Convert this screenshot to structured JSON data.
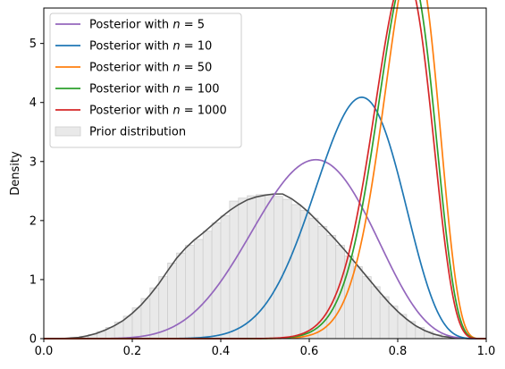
{
  "chart_data": {
    "type": "line",
    "title": "",
    "xlabel": "",
    "ylabel": "Density",
    "xlim": [
      0.0,
      1.0
    ],
    "ylim": [
      0,
      5.6
    ],
    "xticks": [
      "0.0",
      "0.2",
      "0.4",
      "0.6",
      "0.8",
      "1.0"
    ],
    "yticks": [
      "0",
      "1",
      "2",
      "3",
      "4",
      "5"
    ],
    "grid": false,
    "legend_position": "top-left",
    "series": [
      {
        "name": "Posterior with n = 5",
        "legend_prefix": "Posterior with ",
        "legend_var": "n",
        "legend_eq": " = 5",
        "color": "#9467bd",
        "a": 8.5,
        "b": 5.7
      },
      {
        "name": "Posterior with n = 10",
        "legend_prefix": "Posterior with ",
        "legend_var": "n",
        "legend_eq": " = 10",
        "color": "#1f77b4",
        "a": 15.3,
        "b": 6.6
      },
      {
        "name": "Posterior with n = 50",
        "legend_prefix": "Posterior with ",
        "legend_var": "n",
        "legend_eq": " = 50",
        "color": "#ff7f0e",
        "a": 31.5,
        "b": 7.0
      },
      {
        "name": "Posterior with n = 100",
        "legend_prefix": "Posterior with ",
        "legend_var": "n",
        "legend_eq": " = 100",
        "color": "#2ca02c",
        "a": 30.0,
        "b": 7.2
      },
      {
        "name": "Posterior with n = 1000",
        "legend_prefix": "Posterior with ",
        "legend_var": "n",
        "legend_eq": " = 1000",
        "color": "#d62728",
        "a": 29.5,
        "b": 7.4
      }
    ],
    "prior": {
      "name": "Prior distribution",
      "fill_color": "#e9e9e9",
      "edge_color": "#cfcfcf",
      "curve_color": "#4d4d4d",
      "bins": [
        {
          "x0": 0.0,
          "x1": 0.02,
          "h": 0.0
        },
        {
          "x0": 0.02,
          "x1": 0.04,
          "h": 0.0
        },
        {
          "x0": 0.04,
          "x1": 0.06,
          "h": 0.01
        },
        {
          "x0": 0.06,
          "x1": 0.08,
          "h": 0.02
        },
        {
          "x0": 0.08,
          "x1": 0.1,
          "h": 0.04
        },
        {
          "x0": 0.1,
          "x1": 0.12,
          "h": 0.07
        },
        {
          "x0": 0.12,
          "x1": 0.14,
          "h": 0.12
        },
        {
          "x0": 0.14,
          "x1": 0.16,
          "h": 0.19
        },
        {
          "x0": 0.16,
          "x1": 0.18,
          "h": 0.28
        },
        {
          "x0": 0.18,
          "x1": 0.2,
          "h": 0.38
        },
        {
          "x0": 0.2,
          "x1": 0.22,
          "h": 0.52
        },
        {
          "x0": 0.22,
          "x1": 0.24,
          "h": 0.68
        },
        {
          "x0": 0.24,
          "x1": 0.26,
          "h": 0.86
        },
        {
          "x0": 0.26,
          "x1": 0.28,
          "h": 1.05
        },
        {
          "x0": 0.28,
          "x1": 0.3,
          "h": 1.28
        },
        {
          "x0": 0.3,
          "x1": 0.32,
          "h": 1.45
        },
        {
          "x0": 0.32,
          "x1": 0.34,
          "h": 1.58
        },
        {
          "x0": 0.34,
          "x1": 0.36,
          "h": 1.68
        },
        {
          "x0": 0.36,
          "x1": 0.38,
          "h": 1.82
        },
        {
          "x0": 0.38,
          "x1": 0.4,
          "h": 1.96
        },
        {
          "x0": 0.4,
          "x1": 0.42,
          "h": 2.08
        },
        {
          "x0": 0.42,
          "x1": 0.44,
          "h": 2.33
        },
        {
          "x0": 0.44,
          "x1": 0.46,
          "h": 2.38
        },
        {
          "x0": 0.46,
          "x1": 0.48,
          "h": 2.42
        },
        {
          "x0": 0.48,
          "x1": 0.5,
          "h": 2.44
        },
        {
          "x0": 0.5,
          "x1": 0.52,
          "h": 2.44
        },
        {
          "x0": 0.52,
          "x1": 0.54,
          "h": 2.41
        },
        {
          "x0": 0.54,
          "x1": 0.56,
          "h": 2.36
        },
        {
          "x0": 0.56,
          "x1": 0.58,
          "h": 2.27
        },
        {
          "x0": 0.58,
          "x1": 0.6,
          "h": 2.17
        },
        {
          "x0": 0.6,
          "x1": 0.62,
          "h": 2.04
        },
        {
          "x0": 0.62,
          "x1": 0.64,
          "h": 1.9
        },
        {
          "x0": 0.64,
          "x1": 0.66,
          "h": 1.75
        },
        {
          "x0": 0.66,
          "x1": 0.68,
          "h": 1.58
        },
        {
          "x0": 0.68,
          "x1": 0.7,
          "h": 1.4
        },
        {
          "x0": 0.7,
          "x1": 0.72,
          "h": 1.22
        },
        {
          "x0": 0.72,
          "x1": 0.74,
          "h": 1.05
        },
        {
          "x0": 0.74,
          "x1": 0.76,
          "h": 0.88
        },
        {
          "x0": 0.76,
          "x1": 0.78,
          "h": 0.71
        },
        {
          "x0": 0.78,
          "x1": 0.8,
          "h": 0.55
        },
        {
          "x0": 0.8,
          "x1": 0.82,
          "h": 0.41
        },
        {
          "x0": 0.82,
          "x1": 0.84,
          "h": 0.29
        },
        {
          "x0": 0.84,
          "x1": 0.86,
          "h": 0.19
        },
        {
          "x0": 0.86,
          "x1": 0.88,
          "h": 0.12
        },
        {
          "x0": 0.88,
          "x1": 0.9,
          "h": 0.07
        },
        {
          "x0": 0.9,
          "x1": 0.92,
          "h": 0.04
        },
        {
          "x0": 0.92,
          "x1": 0.94,
          "h": 0.02
        },
        {
          "x0": 0.94,
          "x1": 0.96,
          "h": 0.01
        },
        {
          "x0": 0.96,
          "x1": 0.98,
          "h": 0.0
        },
        {
          "x0": 0.98,
          "x1": 1.0,
          "h": 0.0
        }
      ],
      "curve": [
        [
          0.0,
          0.0
        ],
        [
          0.04,
          0.0
        ],
        [
          0.08,
          0.02
        ],
        [
          0.1,
          0.05
        ],
        [
          0.12,
          0.09
        ],
        [
          0.14,
          0.15
        ],
        [
          0.16,
          0.22
        ],
        [
          0.18,
          0.31
        ],
        [
          0.2,
          0.43
        ],
        [
          0.22,
          0.57
        ],
        [
          0.24,
          0.74
        ],
        [
          0.26,
          0.93
        ],
        [
          0.28,
          1.15
        ],
        [
          0.3,
          1.36
        ],
        [
          0.32,
          1.53
        ],
        [
          0.34,
          1.67
        ],
        [
          0.36,
          1.79
        ],
        [
          0.38,
          1.92
        ],
        [
          0.4,
          2.05
        ],
        [
          0.42,
          2.17
        ],
        [
          0.44,
          2.27
        ],
        [
          0.46,
          2.35
        ],
        [
          0.48,
          2.4
        ],
        [
          0.5,
          2.43
        ],
        [
          0.52,
          2.45
        ],
        [
          0.54,
          2.45
        ],
        [
          0.56,
          2.37
        ],
        [
          0.58,
          2.26
        ],
        [
          0.6,
          2.13
        ],
        [
          0.62,
          1.98
        ],
        [
          0.64,
          1.83
        ],
        [
          0.66,
          1.67
        ],
        [
          0.68,
          1.5
        ],
        [
          0.7,
          1.32
        ],
        [
          0.72,
          1.14
        ],
        [
          0.74,
          0.96
        ],
        [
          0.76,
          0.78
        ],
        [
          0.78,
          0.61
        ],
        [
          0.8,
          0.46
        ],
        [
          0.82,
          0.33
        ],
        [
          0.84,
          0.22
        ],
        [
          0.86,
          0.14
        ],
        [
          0.88,
          0.08
        ],
        [
          0.9,
          0.04
        ],
        [
          0.92,
          0.02
        ],
        [
          0.94,
          0.01
        ],
        [
          0.96,
          0.0
        ],
        [
          1.0,
          0.0
        ]
      ]
    }
  }
}
